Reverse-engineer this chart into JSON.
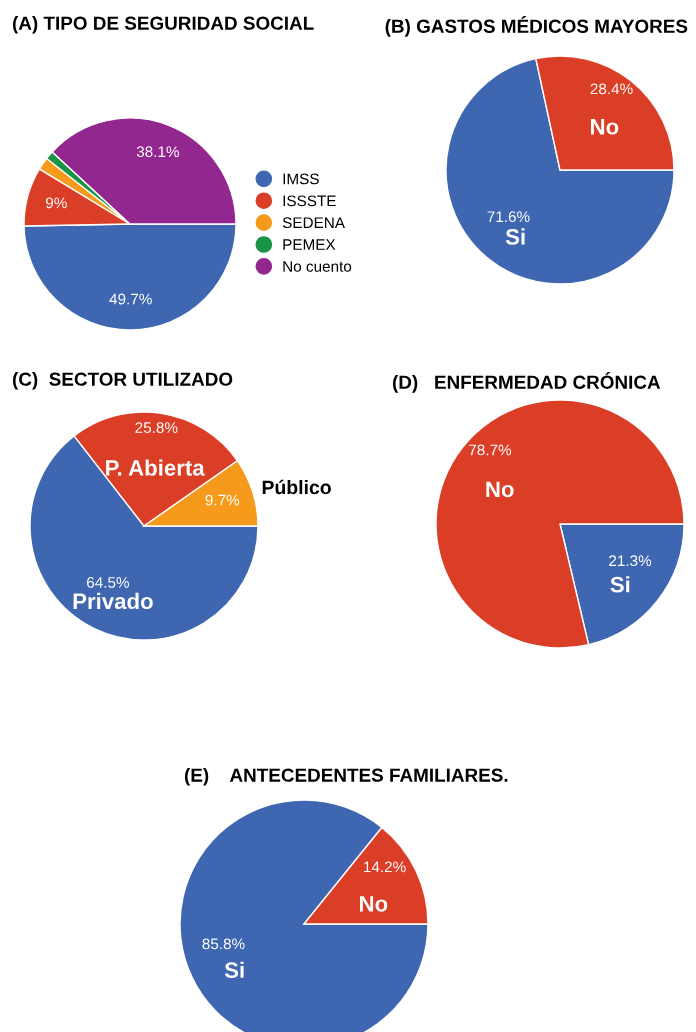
{
  "chart_data": [
    {
      "type": "pie",
      "title": "(A) TIPO DE SEGURIDAD SOCIAL",
      "categories": [
        "IMSS",
        "ISSSTE",
        "SEDENA",
        "PEMEX",
        "No cuento"
      ],
      "values": [
        49.7,
        9,
        1.9,
        1.3,
        38.1
      ],
      "colors": [
        "#3f67b1",
        "#db3e26",
        "#f69a1b",
        "#199447",
        "#92278f"
      ],
      "value_labels": [
        "49.7%",
        "9%",
        null,
        null,
        "38.1%"
      ],
      "legend": "right"
    },
    {
      "type": "pie",
      "title": "(B) GASTOS MÉDICOS MAYORES",
      "categories": [
        "Si",
        "No"
      ],
      "values": [
        71.6,
        28.4
      ],
      "colors": [
        "#3f67b1",
        "#db3e26"
      ],
      "value_labels": [
        "71.6%",
        "28.4%"
      ]
    },
    {
      "type": "pie",
      "title": "(C)  SECTOR UTILIZADO",
      "categories": [
        "Privado",
        "P. Abierta",
        "Público"
      ],
      "values": [
        64.5,
        25.8,
        9.7
      ],
      "colors": [
        "#3f67b1",
        "#db3e26",
        "#f69a1b"
      ],
      "value_labels": [
        "64.5%",
        "25.8%",
        "9.7%"
      ]
    },
    {
      "type": "pie",
      "title": "(D)   ENFERMEDAD CRÓNICA",
      "categories": [
        "Si",
        "No"
      ],
      "values": [
        21.3,
        78.7
      ],
      "colors": [
        "#3f67b1",
        "#db3e26"
      ],
      "value_labels": [
        "21.3%",
        "78.7%"
      ]
    },
    {
      "type": "pie",
      "title": "(E)    ANTECEDENTES FAMILIARES.",
      "categories": [
        "Si",
        "No"
      ],
      "values": [
        85.8,
        14.2
      ],
      "colors": [
        "#3f67b1",
        "#db3e26"
      ],
      "value_labels": [
        "85.8%",
        "14.2%"
      ]
    }
  ]
}
